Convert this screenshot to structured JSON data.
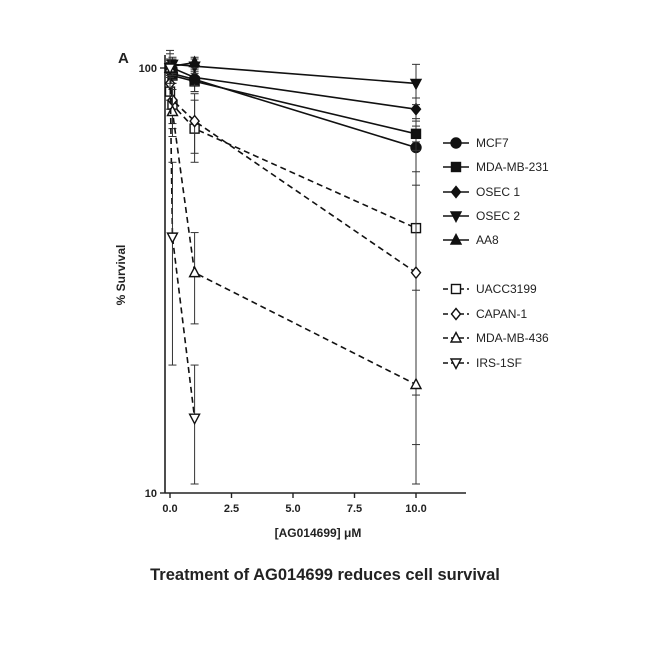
{
  "caption": "Treatment of AG014699 reduces cell survival",
  "chart_data": {
    "type": "line",
    "panel_label": "A",
    "xlabel": "[AG014699] μM",
    "ylabel": "% Survival",
    "x_ticks": [
      "0.0",
      "2.5",
      "5.0",
      "7.5",
      "10.0"
    ],
    "x_tick_values": [
      0,
      2.5,
      5,
      7.5,
      10
    ],
    "y_ticks": [
      "10",
      "100"
    ],
    "y_tick_values": [
      10,
      100
    ],
    "yscale": "log",
    "xlim": [
      -0.2,
      12
    ],
    "ylim": [
      10,
      110
    ],
    "grid": false,
    "legend_position": "right",
    "series": [
      {
        "name": "MCF7",
        "marker": "circle",
        "filled": true,
        "dashed": false,
        "x": [
          0,
          0.1,
          1,
          10
        ],
        "y": [
          100,
          97,
          94,
          65
        ],
        "err": [
          4,
          5,
          6,
          8
        ]
      },
      {
        "name": "MDA-MB-231",
        "marker": "square",
        "filled": true,
        "dashed": false,
        "x": [
          0,
          0.1,
          1,
          10
        ],
        "y": [
          100,
          96,
          93,
          70
        ],
        "err": [
          3,
          4,
          5,
          6
        ]
      },
      {
        "name": "OSEC 1",
        "marker": "diamond",
        "filled": true,
        "dashed": false,
        "x": [
          0,
          0.1,
          1,
          10
        ],
        "y": [
          100,
          100,
          95,
          80
        ],
        "err": [
          3,
          3,
          4,
          5
        ]
      },
      {
        "name": "OSEC 2",
        "marker": "triangle-down",
        "filled": true,
        "dashed": false,
        "x": [
          0,
          0.1,
          1,
          10
        ],
        "y": [
          100,
          102,
          101,
          92
        ],
        "err": [
          3,
          3,
          4,
          10
        ]
      },
      {
        "name": "AA8",
        "marker": "triangle-up",
        "filled": true,
        "dashed": false,
        "x": [
          0,
          0.1,
          1
        ],
        "y": [
          100,
          101,
          103
        ],
        "err": [
          5,
          5,
          3
        ]
      },
      {
        "name": "UACC3199",
        "marker": "square",
        "filled": false,
        "dashed": true,
        "x": [
          0,
          0.1,
          1,
          10
        ],
        "y": [
          88,
          82,
          72,
          42
        ],
        "err": [
          8,
          10,
          12,
          25
        ]
      },
      {
        "name": "CAPAN-1",
        "marker": "diamond",
        "filled": false,
        "dashed": true,
        "x": [
          0,
          0.1,
          1,
          10
        ],
        "y": [
          92,
          84,
          75,
          33
        ],
        "err": [
          8,
          10,
          12,
          20
        ]
      },
      {
        "name": "MDA-MB-436",
        "marker": "triangle-up",
        "filled": false,
        "dashed": true,
        "x": [
          0,
          0.1,
          1,
          10
        ],
        "y": [
          100,
          79,
          33,
          18
        ],
        "err": [
          8,
          10,
          8,
          12
        ]
      },
      {
        "name": "IRS-1SF",
        "marker": "triangle-down",
        "filled": false,
        "dashed": true,
        "x": [
          0,
          0.1,
          1
        ],
        "y": [
          100,
          40,
          15
        ],
        "err": [
          10,
          20,
          5
        ]
      }
    ]
  }
}
